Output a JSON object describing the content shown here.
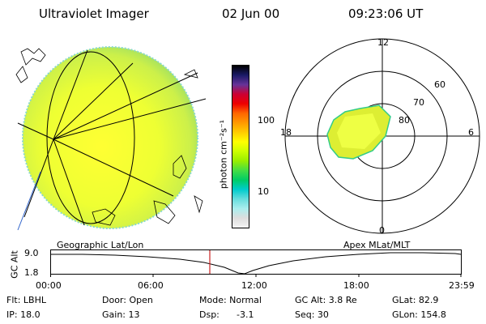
{
  "header": {
    "instrument": "Ultraviolet Imager",
    "date": "02 Jun 00",
    "time": "09:23:06 UT"
  },
  "colorbar": {
    "unit_label": "photon cm⁻²s⁻¹",
    "tick_100": "100",
    "tick_10": "10",
    "colors": [
      "#000000",
      "#1a1a66",
      "#663399",
      "#cc0033",
      "#ee0000",
      "#ff6600",
      "#ff9900",
      "#ffcc00",
      "#ffff00",
      "#ccff00",
      "#99ee00",
      "#44dd44",
      "#00cc66",
      "#00cccc",
      "#66dddd",
      "#aaeeee",
      "#dddddd",
      "#f4f4f4"
    ]
  },
  "polar": {
    "mlt_top": "12",
    "mlt_left": "18",
    "mlt_right": "6",
    "mlt_bottom": "0",
    "lat_60": "60",
    "lat_70": "70",
    "lat_80": "80"
  },
  "timeline": {
    "left_title": "Geographic Lat/Lon",
    "right_title": "Apex MLat/MLT",
    "axis_label": "GC Alt",
    "y_top": "9.0",
    "y_bottom": "1.8",
    "times": [
      "00:00",
      "06:00",
      "12:00",
      "18:00",
      "23:59"
    ],
    "current_time_color": "#cc2222"
  },
  "footer": {
    "flt": "Flt: LBHL",
    "ip": "IP: 18.0",
    "door": "Door: Open",
    "gain": "Gain: 13",
    "mode": "Mode: Normal",
    "dsp_label": "Dsp:",
    "dsp_value": "-3.1",
    "gc_alt": "GC Alt: 3.8 Re",
    "seq": "Seq: 30",
    "glat": "GLat: 82.9",
    "glon": "GLon: 154.8"
  }
}
